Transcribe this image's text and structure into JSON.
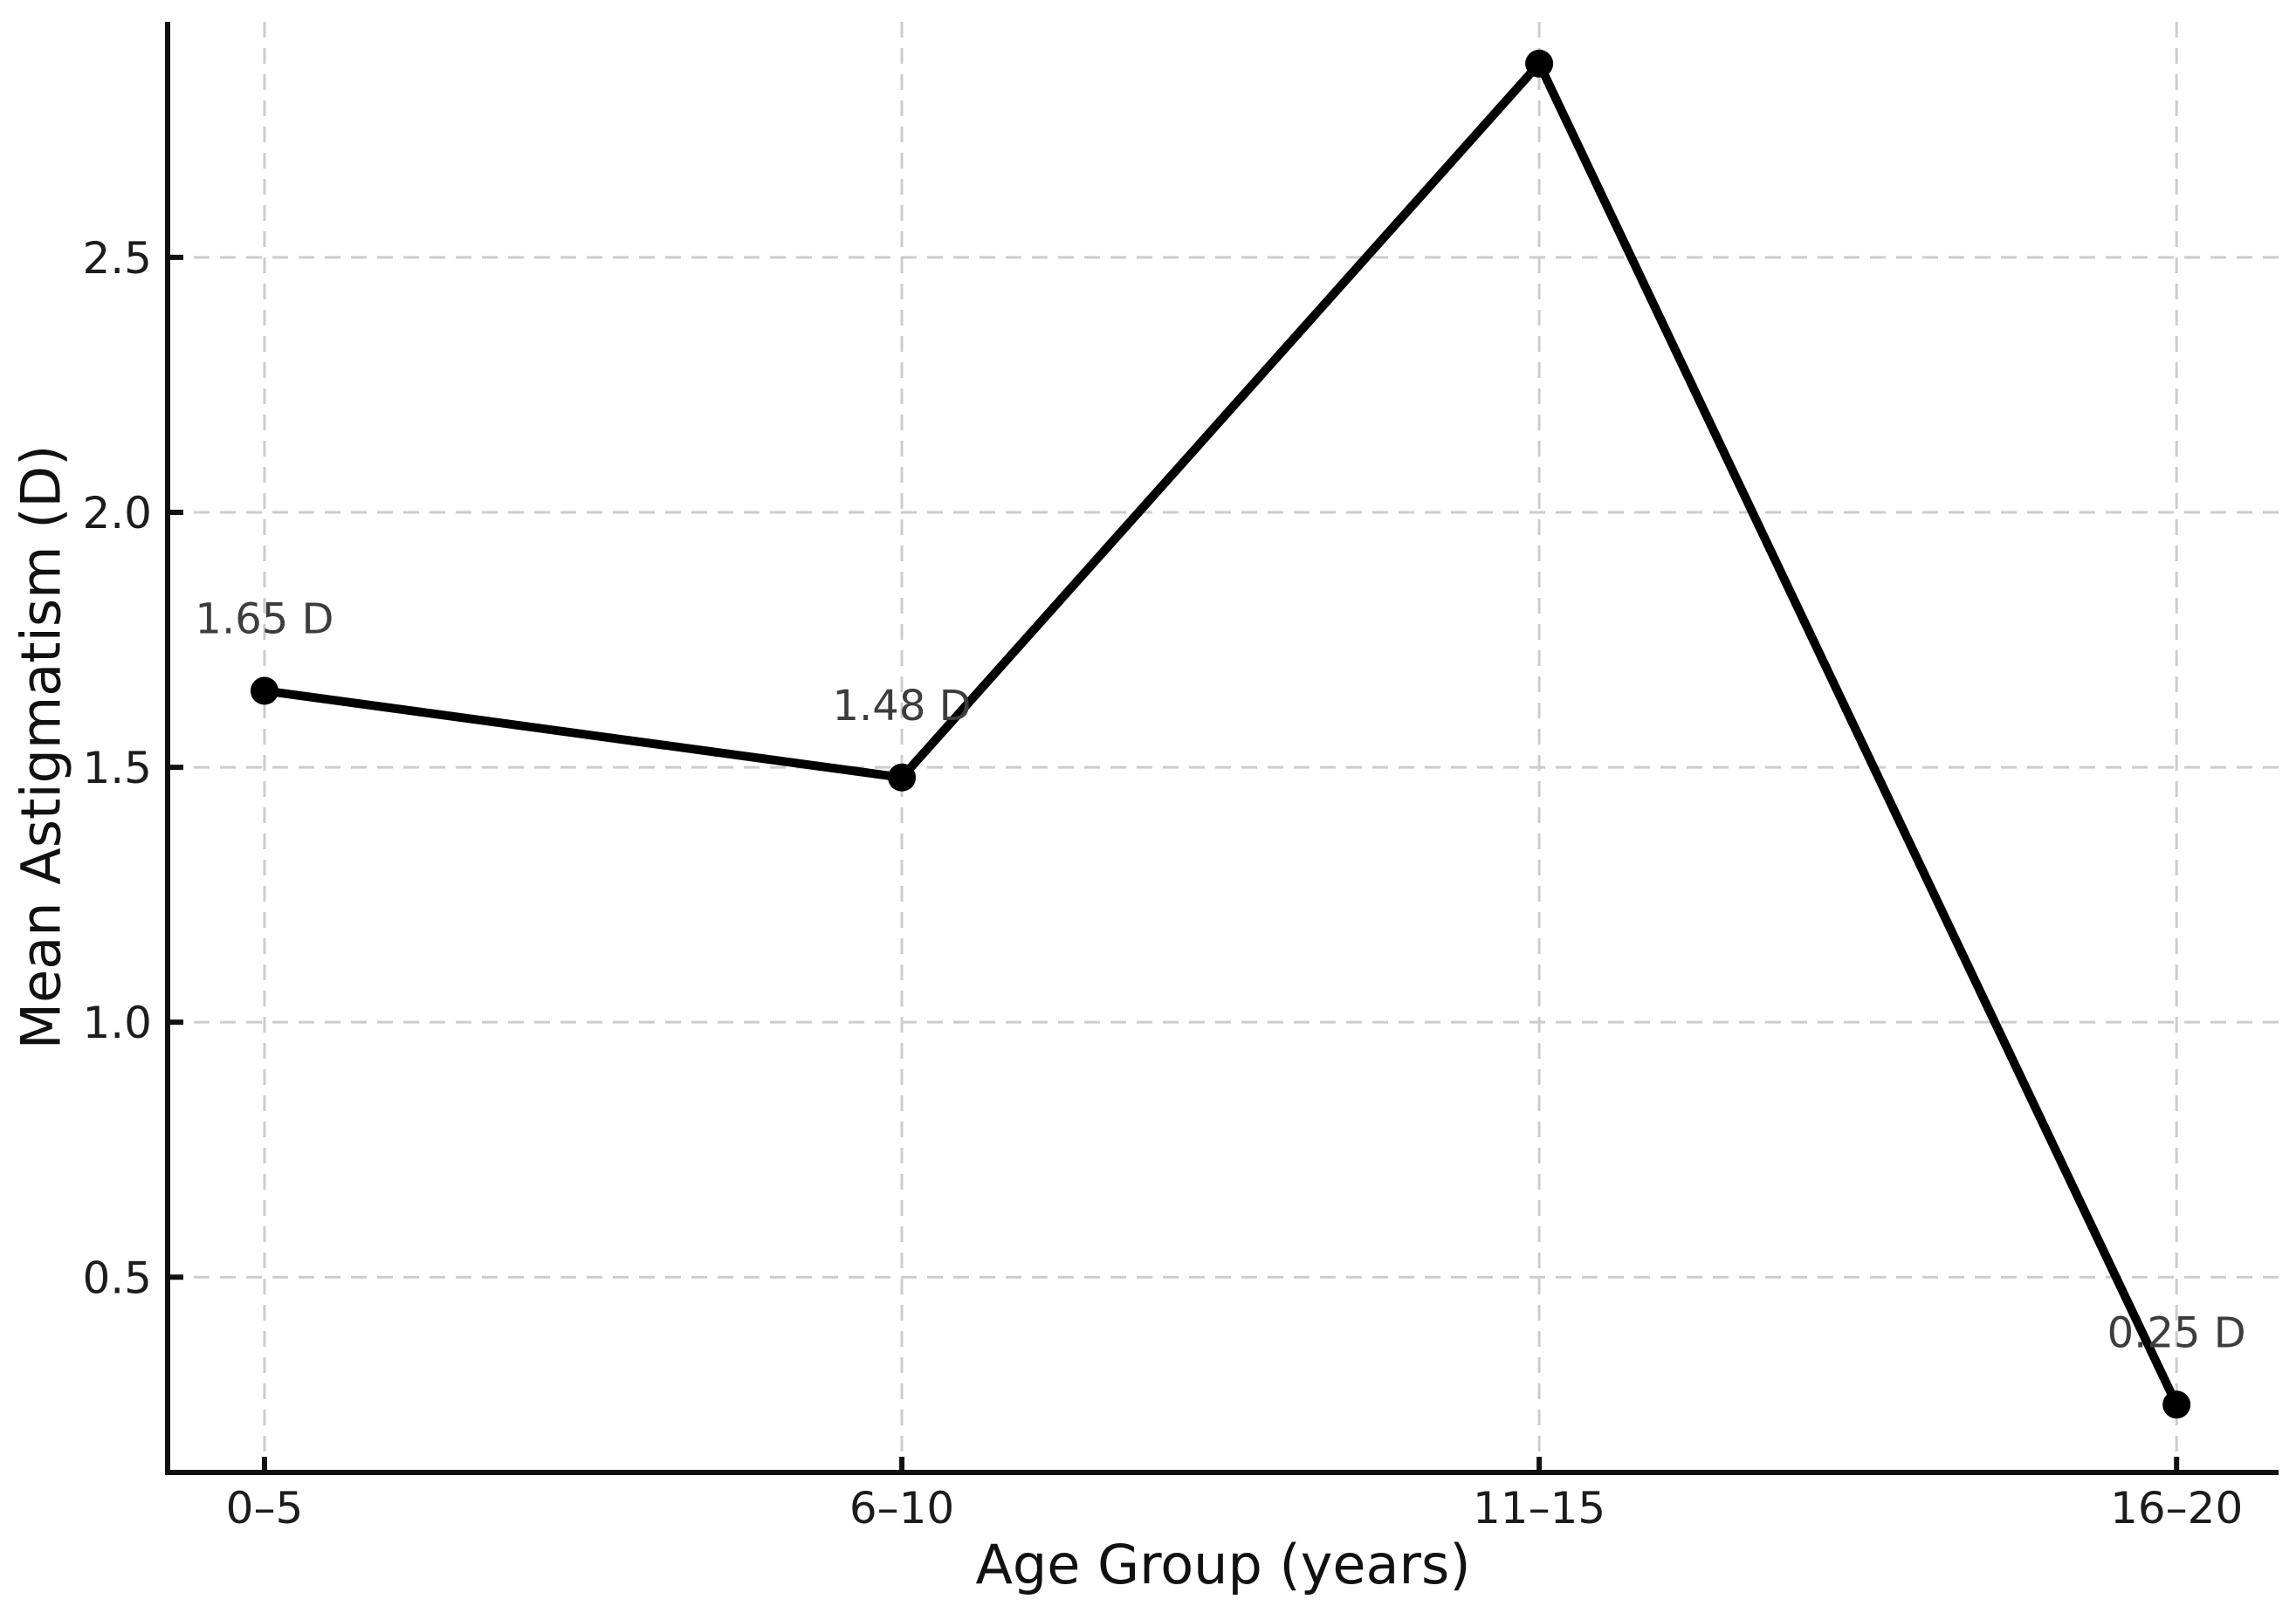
{
  "figure": {
    "background": "#ffffff"
  },
  "chart_data": {
    "type": "line",
    "title": "",
    "xlabel": "Age Group (years)",
    "ylabel": "Mean Astigmatism (D)",
    "categories": [
      "0–5",
      "6–10",
      "11–15",
      "16–20"
    ],
    "series": [
      {
        "name": "Mean Astigmatism",
        "values": [
          1.65,
          1.48,
          2.88,
          0.25
        ],
        "color": "#000000",
        "marker": "circle"
      }
    ],
    "point_labels": [
      "1.65 D",
      "1.48 D",
      "",
      "0.25 D"
    ],
    "point_label_color": "#3d3d3d",
    "yticks": [
      "0.5",
      "1.0",
      "1.5",
      "2.0",
      "2.5"
    ],
    "ytick_values": [
      0.5,
      1.0,
      1.5,
      2.0,
      2.5
    ],
    "ylim": [
      0.117,
      2.962
    ],
    "xlim": [
      -0.152,
      3.16
    ],
    "grid": "on",
    "grid_color": "#cccccc",
    "grid_style": "dashed",
    "axis_color": "#111111",
    "tick_label_color": "#1c1c1c",
    "legend": "none"
  }
}
